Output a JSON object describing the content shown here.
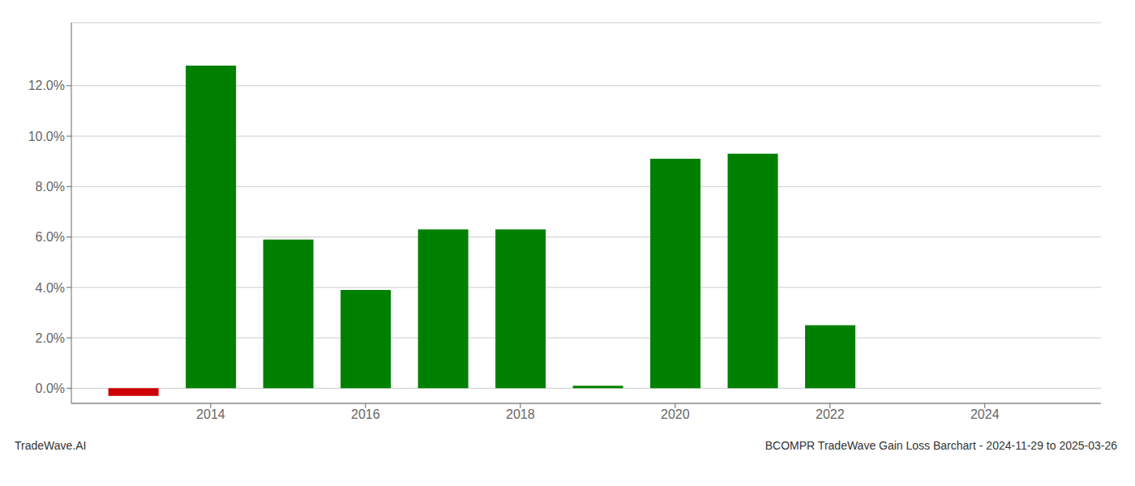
{
  "chart_data": {
    "type": "bar",
    "x": [
      2013,
      2014,
      2015,
      2016,
      2017,
      2018,
      2019,
      2020,
      2021,
      2022,
      2023
    ],
    "values": [
      -0.003,
      0.128,
      0.059,
      0.039,
      0.063,
      0.063,
      0.001,
      0.091,
      0.093,
      0.025,
      0.0
    ],
    "colors": [
      "#cc0000",
      "#008000",
      "#008000",
      "#008000",
      "#008000",
      "#008000",
      "#008000",
      "#008000",
      "#008000",
      "#008000",
      "#008000"
    ],
    "xlim": [
      2012.2,
      2025.5
    ],
    "xticks": [
      2014,
      2016,
      2018,
      2020,
      2022,
      2024
    ],
    "ylim": [
      -0.006,
      0.145
    ],
    "yticks": [
      {
        "value": 0.0,
        "label": "0.0%"
      },
      {
        "value": 0.02,
        "label": "2.0%"
      },
      {
        "value": 0.04,
        "label": "4.0%"
      },
      {
        "value": 0.06,
        "label": "6.0%"
      },
      {
        "value": 0.08,
        "label": "8.0%"
      },
      {
        "value": 0.1,
        "label": "10.0%"
      },
      {
        "value": 0.12,
        "label": "12.0%"
      }
    ],
    "grid": true,
    "annotations": [
      "TradeWave.AI",
      "BCOMPR TradeWave Gain Loss Barchart - 2024-11-29 to 2025-03-26"
    ]
  }
}
